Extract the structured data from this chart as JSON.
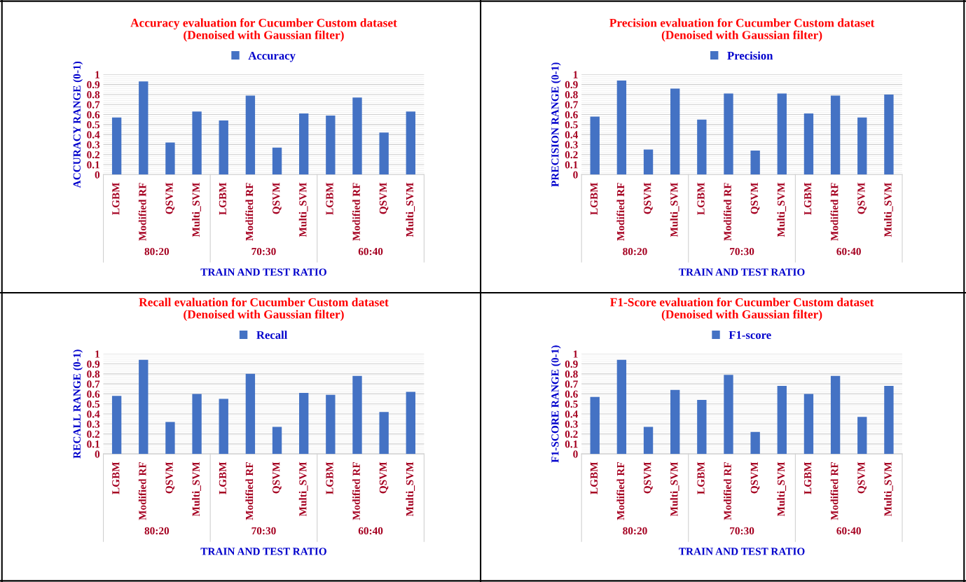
{
  "chart_data": [
    {
      "type": "bar",
      "title": "Accuracy evaluation for Cucumber Custom dataset",
      "subtitle": "(Denoised with Gaussian filter)",
      "xlabel": "TRAIN AND TEST RATIO",
      "ylabel": "ACCURACY RANGE (0-1)",
      "categories": [
        "LGBM",
        "Modified RF",
        "QSVM",
        "Multi_SVM",
        "LGBM",
        "Modified RF",
        "QSVM",
        "Multi_SVM",
        "LGBM",
        "Modified RF",
        "QSVM",
        "Multi_SVM"
      ],
      "series": [
        {
          "name": "Accuracy",
          "color": "#4472c4",
          "values": [
            0.57,
            0.93,
            0.32,
            0.63,
            0.54,
            0.79,
            0.27,
            0.61,
            0.59,
            0.77,
            0.42,
            0.63
          ]
        }
      ],
      "annotations": [
        "80:20",
        "70:30",
        "60:40"
      ],
      "ylim": [
        0,
        1
      ],
      "yticks": [
        0,
        0.1,
        0.2,
        0.3,
        0.4,
        0.5,
        0.6,
        0.7,
        0.8,
        0.9,
        1
      ],
      "grid": "y",
      "legend": "top"
    },
    {
      "type": "bar",
      "title": "Precision evaluation for Cucumber Custom dataset",
      "subtitle": "(Denoised with Gaussian filter)",
      "xlabel": "TRAIN AND TEST RATIO",
      "ylabel": "PRECISION RANGE (0-1)",
      "categories": [
        "LGBM",
        "Modified RF",
        "QSVM",
        "Multi_SVM",
        "LGBM",
        "Modified RF",
        "QSVM",
        "Multi_SVM",
        "LGBM",
        "Modified RF",
        "QSVM",
        "Multi_SVM"
      ],
      "series": [
        {
          "name": "Precision",
          "color": "#4472c4",
          "values": [
            0.58,
            0.94,
            0.25,
            0.86,
            0.55,
            0.81,
            0.24,
            0.81,
            0.61,
            0.79,
            0.57,
            0.8
          ]
        }
      ],
      "annotations": [
        "80:20",
        "70:30",
        "60:40"
      ],
      "ylim": [
        0,
        1
      ],
      "yticks": [
        0,
        0.1,
        0.2,
        0.3,
        0.4,
        0.5,
        0.6,
        0.7,
        0.8,
        0.9,
        1
      ],
      "grid": "y",
      "legend": "top"
    },
    {
      "type": "bar",
      "title": "Recall evaluation for Cucumber Custom dataset",
      "subtitle": "(Denoised with Gaussian filter)",
      "xlabel": "TRAIN AND TEST RATIO",
      "ylabel": "RECALL RANGE (0-1)",
      "categories": [
        "LGBM",
        "Modified RF",
        "QSVM",
        "Multi_SVM",
        "LGBM",
        "Modified RF",
        "QSVM",
        "Multi_SVM",
        "LGBM",
        "Modified RF",
        "QSVM",
        "Multi_SVM"
      ],
      "series": [
        {
          "name": "Recall",
          "color": "#4472c4",
          "values": [
            0.58,
            0.94,
            0.32,
            0.6,
            0.55,
            0.8,
            0.27,
            0.61,
            0.59,
            0.78,
            0.42,
            0.62
          ]
        }
      ],
      "annotations": [
        "80:20",
        "70:30",
        "60:40"
      ],
      "ylim": [
        0,
        1
      ],
      "yticks": [
        0,
        0.1,
        0.2,
        0.3,
        0.4,
        0.5,
        0.6,
        0.7,
        0.8,
        0.9,
        1
      ],
      "grid": "y",
      "legend": "top"
    },
    {
      "type": "bar",
      "title": "F1-Score evaluation for Cucumber Custom dataset",
      "subtitle": "(Denoised with Gaussian filter)",
      "xlabel": "TRAIN AND TEST RATIO",
      "ylabel": "F1-SCORE RANGE (0-1)",
      "categories": [
        "LGBM",
        "Modified RF",
        "QSVM",
        "Multi_SVM",
        "LGBM",
        "Modified RF",
        "QSVM",
        "Multi_SVM",
        "LGBM",
        "Modified RF",
        "QSVM",
        "Multi_SVM"
      ],
      "series": [
        {
          "name": "F1-score",
          "color": "#4472c4",
          "values": [
            0.57,
            0.94,
            0.27,
            0.64,
            0.54,
            0.79,
            0.22,
            0.68,
            0.6,
            0.78,
            0.37,
            0.68
          ]
        }
      ],
      "annotations": [
        "80:20",
        "70:30",
        "60:40"
      ],
      "ylim": [
        0,
        1
      ],
      "yticks": [
        0,
        0.1,
        0.2,
        0.3,
        0.4,
        0.5,
        0.6,
        0.7,
        0.8,
        0.9,
        1
      ],
      "grid": "y",
      "legend": "top"
    }
  ]
}
